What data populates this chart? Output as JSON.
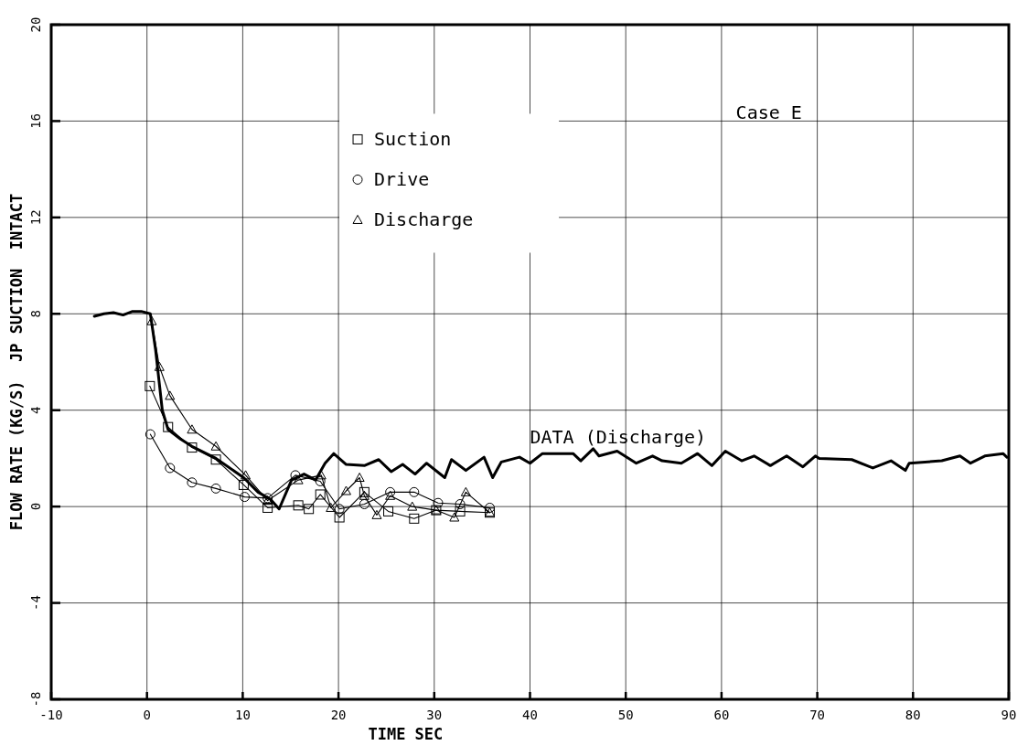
{
  "chart_data": {
    "type": "line",
    "xlabel": "TIME  SEC",
    "ylabel": "FLOW RATE (KG/S)  JP SUCTION  INTACT",
    "annotations": [
      "Case E"
    ],
    "xlim": [
      -10,
      90
    ],
    "xticks": [
      -10,
      0,
      10,
      20,
      30,
      40,
      50,
      60,
      70,
      80,
      90
    ],
    "ylim": [
      -8,
      20
    ],
    "yticks": [
      -8,
      -4,
      0,
      4,
      8,
      12,
      16,
      20
    ],
    "grid": true,
    "legend": "top",
    "line_style": "solid",
    "series": [
      {
        "name": "DATA (Discharge)",
        "color": "#000000",
        "marker": "none",
        "x": [
          -5.5,
          -4.5,
          -3.5,
          -2.5,
          -1.5,
          -0.6,
          0.35,
          0.9,
          1.6,
          2.2,
          3.5,
          4.7,
          7.2,
          10.1,
          11.6,
          12.9,
          13.8,
          15.1,
          16.4,
          17.6,
          18.6,
          19.5,
          20.8,
          22.7,
          24.2,
          25.5,
          26.7,
          28,
          29.2,
          31.1,
          31.8,
          33.3,
          35.2,
          36.1,
          37,
          38.9,
          40,
          41.3,
          44.5,
          45.3,
          46.6,
          47.2,
          49.1,
          51.1,
          52.8,
          53.8,
          55.8,
          57.5,
          59,
          60.4,
          62.1,
          63.4,
          65.1,
          66.8,
          68.5,
          69.8,
          70.2,
          73.6,
          75.8,
          77.7,
          79.2,
          79.6,
          83,
          84.9,
          86,
          87.5,
          89.4,
          89.8
        ],
        "values": [
          7.9,
          8.0,
          8.05,
          7.95,
          8.1,
          8.1,
          8.0,
          6.5,
          4.0,
          3.2,
          2.8,
          2.5,
          2.0,
          1.2,
          0.6,
          0.3,
          -0.1,
          1.1,
          1.35,
          1.1,
          1.8,
          2.2,
          1.75,
          1.7,
          1.95,
          1.45,
          1.75,
          1.35,
          1.8,
          1.2,
          1.95,
          1.5,
          2.05,
          1.2,
          1.85,
          2.05,
          1.8,
          2.2,
          2.2,
          1.9,
          2.4,
          2.1,
          2.3,
          1.8,
          2.1,
          1.9,
          1.8,
          2.2,
          1.7,
          2.3,
          1.9,
          2.1,
          1.7,
          2.1,
          1.65,
          2.1,
          2.0,
          1.95,
          1.6,
          1.9,
          1.5,
          1.8,
          1.9,
          2.1,
          1.8,
          2.1,
          2.2,
          2.05
        ]
      },
      {
        "name": "Suction",
        "color": "#000000",
        "marker": "square",
        "x": [
          0.3,
          2.2,
          4.7,
          7.2,
          10.1,
          12.6,
          15.8,
          16.9,
          18.1,
          20.1,
          22.7,
          25.2,
          27.9,
          30.2,
          32.7,
          35.8
        ],
        "values": [
          5.0,
          3.3,
          2.45,
          1.95,
          0.9,
          -0.05,
          0.05,
          -0.1,
          0.5,
          -0.45,
          0.6,
          -0.2,
          -0.5,
          -0.15,
          -0.2,
          -0.25
        ]
      },
      {
        "name": "Drive",
        "color": "#000000",
        "marker": "circle",
        "x": [
          0.35,
          2.4,
          4.7,
          7.2,
          10.2,
          12.6,
          15.5,
          18.1,
          20.1,
          22.7,
          25.4,
          27.9,
          30.4,
          32.7,
          35.8
        ],
        "values": [
          3.0,
          1.6,
          1.0,
          0.75,
          0.4,
          0.35,
          1.3,
          1.05,
          -0.1,
          0.1,
          0.6,
          0.6,
          0.15,
          0.1,
          -0.05
        ]
      },
      {
        "name": "Discharge",
        "color": "#000000",
        "marker": "triangle",
        "x": [
          0.5,
          1.3,
          2.4,
          4.7,
          7.2,
          10.3,
          12.6,
          15.8,
          18.2,
          19.2,
          20.8,
          22.2,
          22.7,
          24,
          25.4,
          27.7,
          30.2,
          32.1,
          33.3,
          35.8
        ],
        "values": [
          7.7,
          5.8,
          4.6,
          3.2,
          2.5,
          1.3,
          0.25,
          1.1,
          1.3,
          -0.05,
          0.65,
          1.2,
          0.45,
          -0.35,
          0.45,
          0.0,
          -0.15,
          -0.45,
          0.6,
          -0.25
        ]
      }
    ]
  }
}
